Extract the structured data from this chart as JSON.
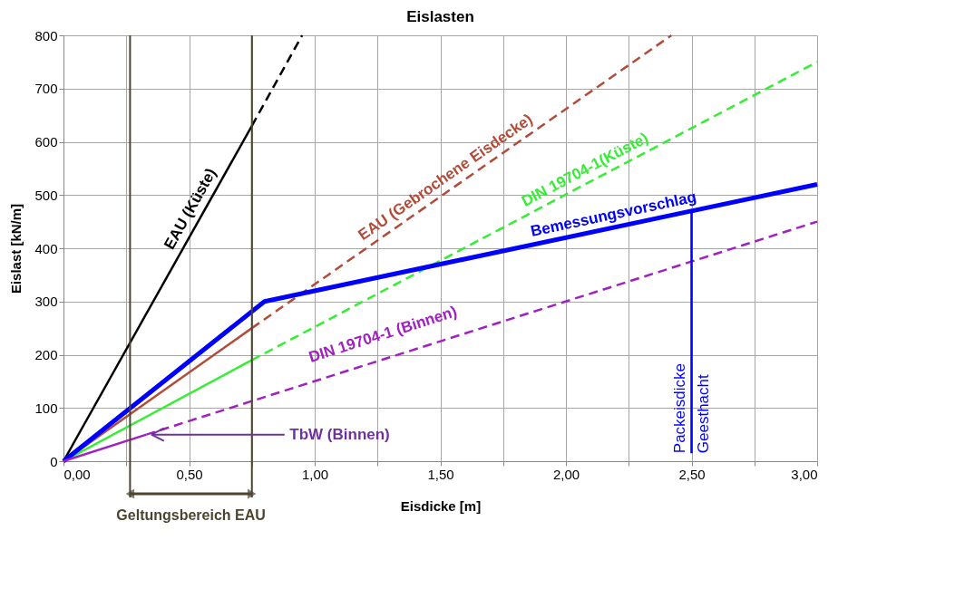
{
  "chart_data": {
    "type": "line",
    "title": "Eislasten",
    "xlabel": "Eisdicke [m]",
    "ylabel": "Eislast [kN/m]",
    "xlim": [
      0,
      3
    ],
    "ylim": [
      0,
      800
    ],
    "xticks": [
      {
        "value": 0,
        "label": "0,00"
      },
      {
        "value": 0.25,
        "label": null
      },
      {
        "value": 0.5,
        "label": "0,50"
      },
      {
        "value": 0.75,
        "label": null
      },
      {
        "value": 1,
        "label": "1,00"
      },
      {
        "value": 1.25,
        "label": null
      },
      {
        "value": 1.5,
        "label": "1,50"
      },
      {
        "value": 1.75,
        "label": null
      },
      {
        "value": 2,
        "label": "2,00"
      },
      {
        "value": 2.25,
        "label": null
      },
      {
        "value": 2.5,
        "label": "2,50"
      },
      {
        "value": 2.75,
        "label": null
      },
      {
        "value": 3,
        "label": "3,00"
      }
    ],
    "yticks": [
      0,
      100,
      200,
      300,
      400,
      500,
      600,
      700,
      800
    ],
    "grid": true,
    "legend": false,
    "marker": "none",
    "series": [
      {
        "name": "EAU (Küste)",
        "color": "#000000",
        "x": [
          0,
          0.75
        ],
        "values": [
          0,
          630
        ],
        "line_style": "solid"
      },
      {
        "color": "#000000",
        "x": [
          0.75,
          0.95
        ],
        "values": [
          630,
          800
        ],
        "line_style": "dashed"
      },
      {
        "color": "#b24c3a",
        "x": [
          0,
          0.75
        ],
        "values": [
          0,
          250
        ],
        "line_style": "solid"
      },
      {
        "name": "EAU (Gebrochene Eisdecke)",
        "color": "#b24c3a",
        "x": [
          0.75,
          2.42
        ],
        "values": [
          250,
          800
        ],
        "line_style": "dashed"
      },
      {
        "color": "#33ee33",
        "x": [
          0,
          0.75
        ],
        "values": [
          0,
          190
        ],
        "line_style": "solid"
      },
      {
        "name": "DIN 19704-1(Küste)",
        "color": "#33ee33",
        "x": [
          0.75,
          3
        ],
        "values": [
          190,
          750
        ],
        "line_style": "dashed"
      },
      {
        "name": "Bemessungsvorschlag",
        "color": "#0000ff",
        "x": [
          0,
          0.8,
          3
        ],
        "values": [
          0,
          300,
          520
        ],
        "line_style": "solid"
      },
      {
        "color": "#a020c0",
        "x": [
          0,
          0.33
        ],
        "values": [
          0,
          50
        ],
        "line_style": "solid"
      },
      {
        "name": "DIN 19704-1 (Binnen)",
        "color": "#a020c0",
        "x": [
          0.33,
          3
        ],
        "values": [
          50,
          450
        ],
        "line_style": "dashed"
      },
      {
        "color": "#0000ff",
        "x": [
          2.5,
          2.5
        ],
        "values": [
          15,
          470
        ],
        "line_style": "solid"
      }
    ],
    "ref_lines": [
      {
        "axis": "x",
        "value": 0.265,
        "color": "#4d4430"
      },
      {
        "axis": "x",
        "value": 0.75,
        "color": "#4d4430"
      }
    ],
    "annotations": [
      {
        "text": "TbW (Binnen)",
        "x": 0.33,
        "y": 50
      },
      "Packeisdicke",
      "Geesthacht",
      "Geltungsbereich EAU"
    ]
  }
}
